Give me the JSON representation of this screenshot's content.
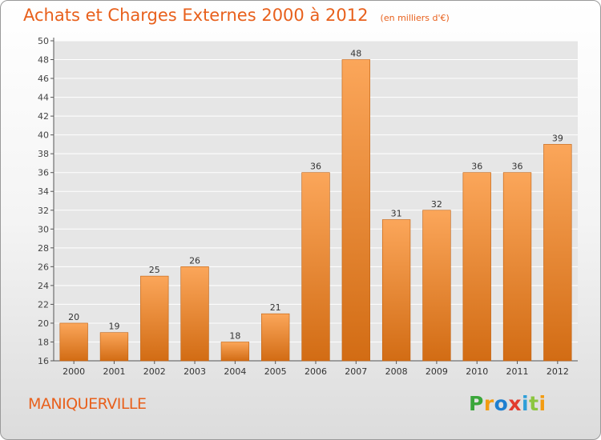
{
  "chart_data": {
    "type": "bar",
    "title": "Achats et Charges Externes 2000 à 2012",
    "subtitle": "(en milliers d'€)",
    "categories": [
      "2000",
      "2001",
      "2002",
      "2003",
      "2004",
      "2005",
      "2006",
      "2007",
      "2008",
      "2009",
      "2010",
      "2011",
      "2012"
    ],
    "values": [
      20,
      19,
      25,
      26,
      18,
      21,
      36,
      48,
      31,
      32,
      36,
      36,
      39
    ],
    "xlabel": "",
    "ylabel": "",
    "ylim": [
      16,
      50
    ],
    "yticks": [
      16,
      18,
      20,
      22,
      24,
      26,
      28,
      30,
      32,
      34,
      36,
      38,
      40,
      42,
      44,
      46,
      48,
      50
    ],
    "grid": true,
    "data_labels": true,
    "colors": {
      "bar_light": "#fba65a",
      "bar_dark": "#d26c14",
      "bar_edge": "#c0600f",
      "text": "#e8601c"
    }
  },
  "footer": {
    "commune": "MANIQUERVILLE",
    "brand": {
      "letters": [
        "P",
        "r",
        "o",
        "x",
        "i",
        "t",
        "i"
      ],
      "colors": [
        "#3aa63a",
        "#f39c12",
        "#1e7fd0",
        "#e23b2e",
        "#2e9fd8",
        "#8cc63f",
        "#f39c12"
      ]
    }
  }
}
